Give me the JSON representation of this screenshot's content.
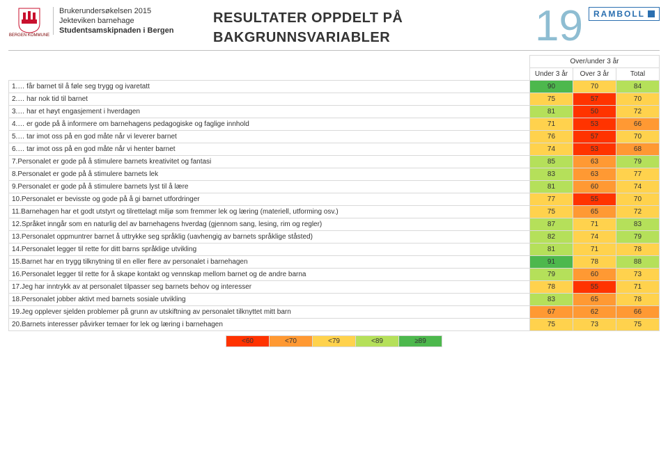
{
  "header": {
    "logo_caption": "BERGEN KOMMUNE",
    "survey": "Brukerundersøkelsen 2015",
    "unit": "Jekteviken barnehage",
    "org": "Studentsamskipnaden i Bergen",
    "title_line1": "RESULTATER OPPDELT PÅ",
    "title_line2": "BAKGRUNNSVARIABLER",
    "page_number": "19",
    "brand": "RAMBOLL"
  },
  "colors": {
    "logo_red": "#c8102e",
    "brand_blue": "#2a6fb0",
    "page_num": "#8ebdd2",
    "tiers": {
      "lt60": "#ff3300",
      "lt70": "#ff9933",
      "lt79": "#ffd24d",
      "lt89": "#b5e05a",
      "ge89": "#4db84d"
    }
  },
  "columns": {
    "section": "Over/under 3 år",
    "c1": "Under 3 år",
    "c2": "Over 3 år",
    "c3": "Total"
  },
  "rows": [
    {
      "label": "1.… får barnet til å føle seg trygg og ivaretatt",
      "v": [
        90,
        70,
        84
      ]
    },
    {
      "label": "2.… har nok tid til barnet",
      "v": [
        75,
        57,
        70
      ]
    },
    {
      "label": "3.… har et høyt engasjement i hverdagen",
      "v": [
        81,
        50,
        72
      ]
    },
    {
      "label": "4.… er gode på å informere om barnehagens pedagogiske og faglige innhold",
      "v": [
        71,
        53,
        66
      ]
    },
    {
      "label": "5.… tar imot oss på en god måte når vi leverer barnet",
      "v": [
        76,
        57,
        70
      ]
    },
    {
      "label": "6.… tar imot oss på en god måte når vi henter barnet",
      "v": [
        74,
        53,
        68
      ]
    },
    {
      "label": "7.Personalet er gode på å stimulere barnets kreativitet og fantasi",
      "v": [
        85,
        63,
        79
      ]
    },
    {
      "label": "8.Personalet er gode på å stimulere barnets lek",
      "v": [
        83,
        63,
        77
      ]
    },
    {
      "label": "9.Personalet er gode på å stimulere barnets lyst til å lære",
      "v": [
        81,
        60,
        74
      ]
    },
    {
      "label": "10.Personalet er bevisste og gode på å gi barnet utfordringer",
      "v": [
        77,
        55,
        70
      ]
    },
    {
      "label": "11.Barnehagen har et godt utstyrt og tilrettelagt miljø som fremmer lek og læring (materiell, utforming osv.)",
      "v": [
        75,
        65,
        72
      ]
    },
    {
      "label": "12.Språket inngår som en naturlig del av barnehagens hverdag (gjennom sang, lesing, rim og regler)",
      "v": [
        87,
        71,
        83
      ]
    },
    {
      "label": "13.Personalet oppmuntrer barnet å uttrykke seg språklig (uavhengig av barnets språklige ståsted)",
      "v": [
        82,
        74,
        79
      ]
    },
    {
      "label": "14.Personalet legger til rette for ditt barns språklige utvikling",
      "v": [
        81,
        71,
        78
      ]
    },
    {
      "label": "15.Barnet har en trygg tilknytning til en eller flere av personalet i barnehagen",
      "v": [
        91,
        78,
        88
      ]
    },
    {
      "label": "16.Personalet legger til rette for å skape kontakt og vennskap mellom barnet og de andre barna",
      "v": [
        79,
        60,
        73
      ]
    },
    {
      "label": "17.Jeg har inntrykk av at personalet tilpasser seg barnets behov og interesser",
      "v": [
        78,
        55,
        71
      ]
    },
    {
      "label": "18.Personalet jobber aktivt med barnets sosiale utvikling",
      "v": [
        83,
        65,
        78
      ]
    },
    {
      "label": "19.Jeg opplever sjelden problemer på grunn av utskiftning av personalet tilknyttet mitt barn",
      "v": [
        67,
        62,
        66
      ]
    },
    {
      "label": "20.Barnets interesser påvirker temaer for lek og læring i barnehagen",
      "v": [
        75,
        73,
        75
      ]
    }
  ],
  "legend": [
    {
      "label": "<60"
    },
    {
      "label": "<70"
    },
    {
      "label": "<79"
    },
    {
      "label": "<89"
    },
    {
      "label": "≥89"
    }
  ]
}
